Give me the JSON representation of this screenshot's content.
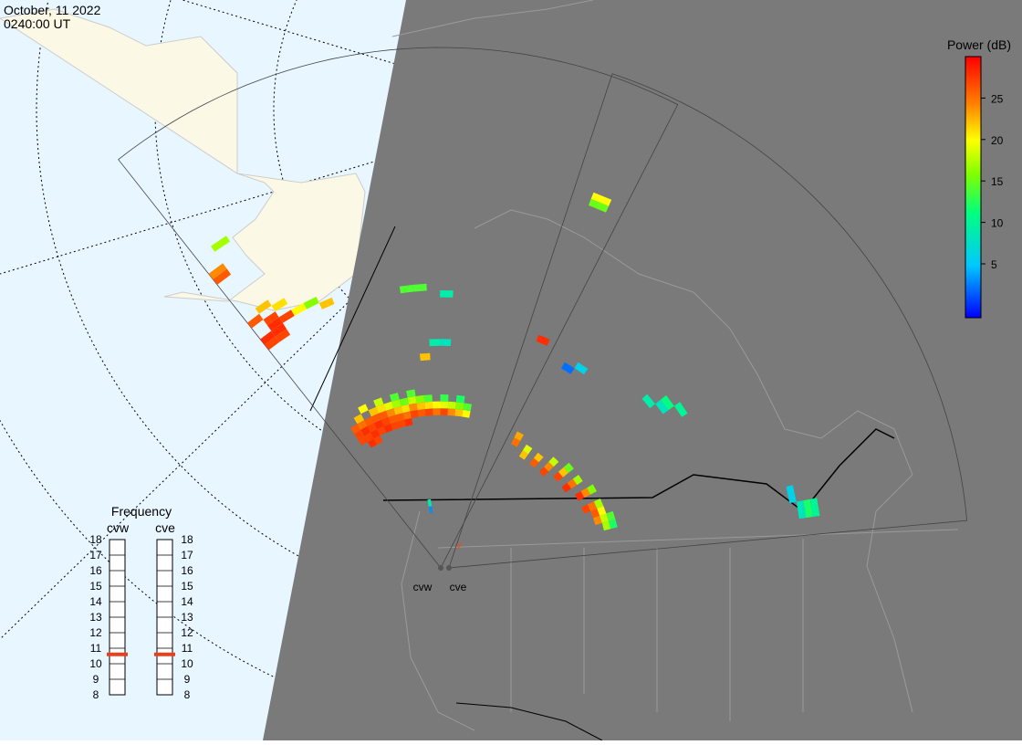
{
  "header": {
    "date": "October, 11 2022",
    "time": "0240:00 UT"
  },
  "colorbar": {
    "title": "Power (dB)",
    "clim": [
      -1.5,
      30
    ],
    "ticks": [
      5,
      10,
      15,
      20,
      25
    ]
  },
  "frequency": {
    "title": "Frequency",
    "ticks": [
      8,
      9,
      10,
      11,
      12,
      13,
      14,
      15,
      16,
      17,
      18
    ],
    "radars": [
      {
        "name": "cvw",
        "value": 10.6
      },
      {
        "name": "cve",
        "value": 10.6
      }
    ]
  },
  "fans": [
    {
      "name": "cvw",
      "echoes": [
        [
          2,
          21,
          27
        ],
        [
          2,
          22,
          27
        ],
        [
          2,
          23,
          26
        ],
        [
          3,
          20,
          28
        ],
        [
          3,
          21,
          27
        ],
        [
          3,
          22,
          28
        ],
        [
          3,
          23,
          25
        ],
        [
          3,
          24,
          22
        ],
        [
          4,
          20,
          27
        ],
        [
          4,
          21,
          28
        ],
        [
          4,
          22,
          27
        ],
        [
          4,
          23,
          26
        ],
        [
          4,
          25,
          20
        ],
        [
          5,
          21,
          27
        ],
        [
          5,
          22,
          28
        ],
        [
          5,
          23,
          26
        ],
        [
          5,
          24,
          22
        ],
        [
          6,
          21,
          28
        ],
        [
          6,
          22,
          27
        ],
        [
          6,
          23,
          26
        ],
        [
          6,
          24,
          21
        ],
        [
          6,
          25,
          18
        ],
        [
          7,
          21,
          27
        ],
        [
          7,
          22,
          26
        ],
        [
          7,
          23,
          24
        ],
        [
          7,
          24,
          19
        ],
        [
          8,
          21,
          27
        ],
        [
          8,
          22,
          26
        ],
        [
          8,
          23,
          22
        ],
        [
          8,
          24,
          17
        ],
        [
          8,
          25,
          14
        ],
        [
          9,
          21,
          28
        ],
        [
          9,
          22,
          25
        ],
        [
          9,
          23,
          21
        ],
        [
          9,
          24,
          15
        ],
        [
          10,
          22,
          27
        ],
        [
          10,
          23,
          24
        ],
        [
          10,
          24,
          18
        ],
        [
          10,
          25,
          14
        ],
        [
          11,
          22,
          26
        ],
        [
          11,
          23,
          22
        ],
        [
          11,
          24,
          16
        ],
        [
          12,
          22,
          27
        ],
        [
          12,
          23,
          21
        ],
        [
          12,
          24,
          14
        ],
        [
          13,
          22,
          25
        ],
        [
          13,
          23,
          20
        ],
        [
          14,
          22,
          27
        ],
        [
          14,
          23,
          19
        ],
        [
          14,
          24,
          13
        ],
        [
          15,
          22,
          24
        ],
        [
          15,
          23,
          18
        ],
        [
          16,
          22,
          22
        ],
        [
          16,
          23,
          16
        ],
        [
          16,
          24,
          12
        ],
        [
          17,
          22,
          20
        ],
        [
          17,
          23,
          14
        ],
        [
          0,
          40,
          27
        ],
        [
          0,
          41,
          28
        ],
        [
          0,
          44,
          26
        ],
        [
          0,
          52,
          26
        ],
        [
          0,
          53,
          24
        ],
        [
          1,
          40,
          27
        ],
        [
          1,
          41,
          28
        ],
        [
          1,
          42,
          28
        ],
        [
          1,
          43,
          27
        ],
        [
          1,
          45,
          22
        ],
        [
          1,
          56,
          17
        ],
        [
          2,
          42,
          27
        ],
        [
          2,
          44,
          21
        ],
        [
          3,
          42,
          20
        ],
        [
          4,
          42,
          16
        ],
        [
          5,
          41,
          22
        ],
        [
          11,
          40,
          14
        ],
        [
          12,
          40,
          14
        ],
        [
          14,
          39,
          9
        ],
        [
          13,
          32,
          9
        ],
        [
          14,
          32,
          8
        ],
        [
          12,
          30,
          22
        ],
        [
          10,
          8,
          3
        ],
        [
          10,
          9,
          9
        ]
      ]
    },
    {
      "name": "cve",
      "echoes": [
        [
          3,
          20,
          25
        ],
        [
          3,
          21,
          23
        ],
        [
          5,
          19,
          22
        ],
        [
          5,
          20,
          19
        ],
        [
          7,
          19,
          26
        ],
        [
          7,
          20,
          22
        ],
        [
          9,
          19,
          27
        ],
        [
          9,
          20,
          24
        ],
        [
          9,
          21,
          18
        ],
        [
          11,
          20,
          27
        ],
        [
          11,
          21,
          22
        ],
        [
          11,
          22,
          15
        ],
        [
          13,
          20,
          28
        ],
        [
          13,
          21,
          25
        ],
        [
          13,
          22,
          17
        ],
        [
          15,
          21,
          28
        ],
        [
          15,
          22,
          24
        ],
        [
          15,
          23,
          16
        ],
        [
          17,
          21,
          27
        ],
        [
          17,
          22,
          25
        ],
        [
          17,
          23,
          17
        ],
        [
          18,
          22,
          26
        ],
        [
          18,
          23,
          20
        ],
        [
          19,
          22,
          24
        ],
        [
          19,
          23,
          18
        ],
        [
          19,
          24,
          14
        ],
        [
          20,
          23,
          17
        ],
        [
          20,
          24,
          12
        ],
        [
          22,
          51,
          8
        ],
        [
          22,
          52,
          12
        ],
        [
          22,
          53,
          10
        ],
        [
          21,
          50,
          6
        ],
        [
          12,
          38,
          8
        ],
        [
          12,
          39,
          11
        ],
        [
          11,
          37,
          9
        ],
        [
          13,
          40,
          10
        ],
        [
          1,
          56,
          15
        ],
        [
          1,
          57,
          20
        ],
        [
          1,
          35,
          28
        ],
        [
          4,
          33,
          2
        ],
        [
          5,
          34,
          6
        ],
        [
          2,
          3,
          27
        ]
      ]
    }
  ]
}
